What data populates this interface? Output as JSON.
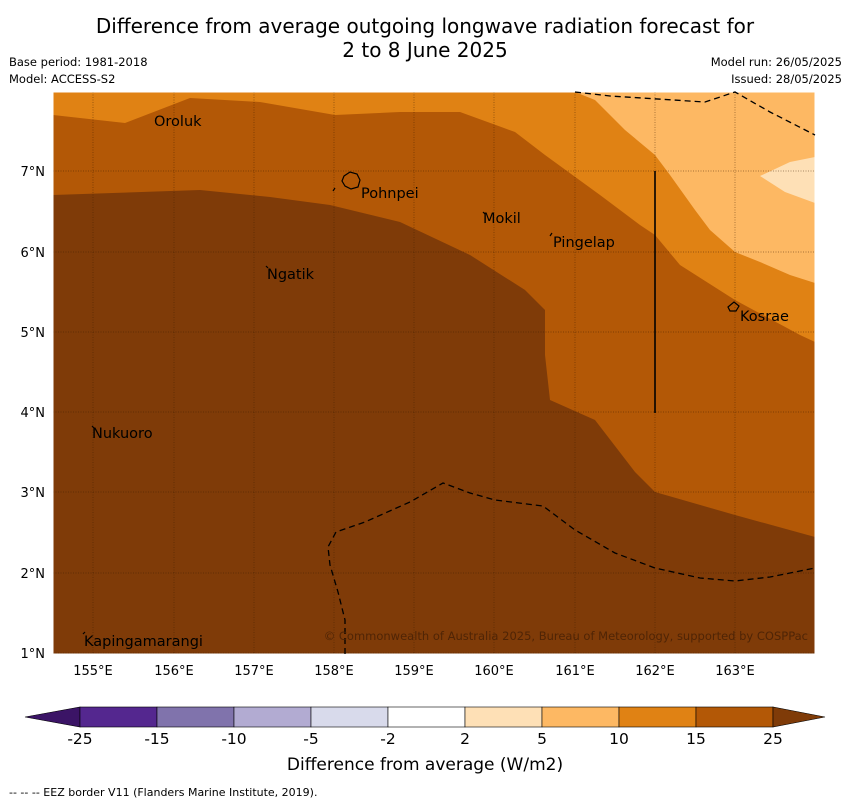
{
  "title_line1": "Difference from average outgoing longwave radiation forecast for",
  "title_line2": "2 to 8 June 2025",
  "base_period": "Base period: 1981-2018",
  "model": "Model: ACCESS-S2",
  "model_run": "Model run: 26/05/2025",
  "issued": "Issued: 28/05/2025",
  "lat_labels": [
    "7°N",
    "6°N",
    "5°N",
    "4°N",
    "3°N",
    "2°N",
    "1°N"
  ],
  "lon_labels": [
    "155°E",
    "156°E",
    "157°E",
    "158°E",
    "159°E",
    "160°E",
    "161°E",
    "162°E",
    "163°E"
  ],
  "places": [
    "Oroluk",
    "Pohnpei",
    "Mokil",
    "Pingelap",
    "Ngatik",
    "Kosrae",
    "Nukuoro",
    "Kapingamarangi"
  ],
  "copyright": "© Commonwealth of Australia 2025, Bureau of Meteorology, supported by COSPPac",
  "colorbar": {
    "ticks": [
      "-25",
      "-15",
      "-10",
      "-5",
      "-2",
      "2",
      "5",
      "10",
      "15",
      "25"
    ],
    "colors": [
      "#3b1466",
      "#54278f",
      "#8073ac",
      "#b2abd2",
      "#d8daeb",
      "#ffffff",
      "#fee0b6",
      "#fdb863",
      "#e08214",
      "#b35806",
      "#7f3b08"
    ],
    "title": "Difference from average (W/m2)"
  },
  "footer": "--  --  -- EEZ border V11 (Flanders Marine Institute, 2019)."
}
